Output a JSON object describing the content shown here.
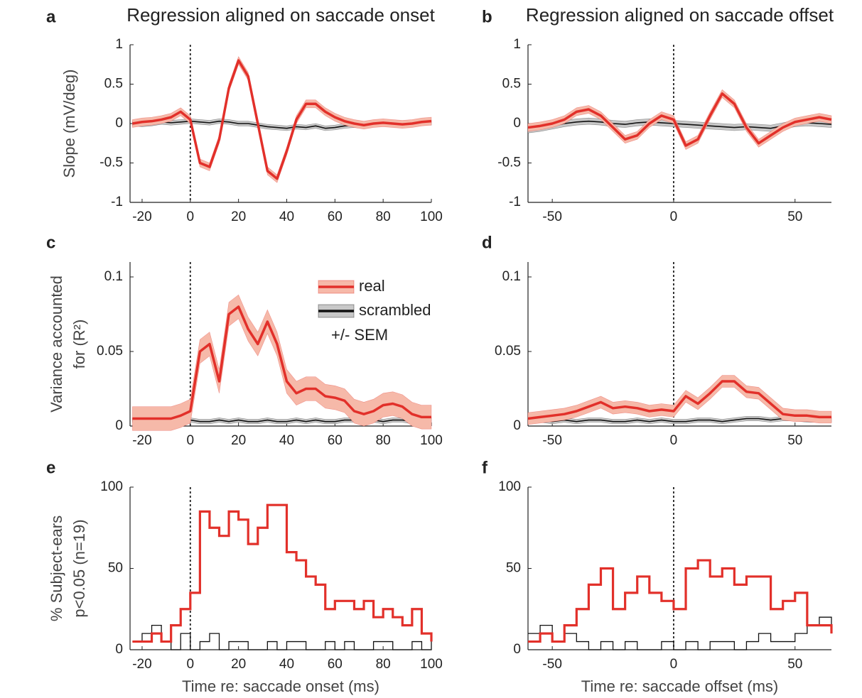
{
  "chart_data": [
    {
      "type": "line",
      "label": "a",
      "title": "Regression aligned on saccade onset",
      "ylabel": [
        "Slope (mV/deg)"
      ],
      "x": [
        -24,
        -20,
        -16,
        -12,
        -8,
        -4,
        0,
        4,
        8,
        12,
        16,
        20,
        24,
        28,
        32,
        36,
        40,
        44,
        48,
        52,
        56,
        60,
        64,
        68,
        72,
        76,
        80,
        84,
        88,
        92,
        96,
        100
      ],
      "xlim": [
        -25,
        100
      ],
      "xticks": [
        -20,
        0,
        20,
        40,
        60,
        80,
        100
      ],
      "ylim": [
        -1,
        1
      ],
      "yticks": [
        -1,
        -0.5,
        0,
        0.5,
        1
      ],
      "vline": 0,
      "series": [
        {
          "name": "scrambled",
          "color": "#111111",
          "band_color": "#c8c8c8",
          "sem": 0.03,
          "values": [
            0,
            -0.01,
            0,
            0.02,
            0.01,
            0.02,
            0.03,
            0.02,
            0.01,
            0.03,
            0.02,
            0,
            0,
            -0.02,
            -0.04,
            -0.05,
            -0.06,
            -0.04,
            -0.05,
            -0.03,
            -0.06,
            -0.05,
            -0.03,
            -0.02,
            -0.03,
            -0.01,
            0,
            0.01,
            0,
            0.01,
            0.02,
            0.01
          ]
        },
        {
          "name": "real",
          "color": "#e2302a",
          "band_color": "#f6b9a9",
          "sem": 0.05,
          "values": [
            0,
            0.02,
            0.03,
            0.05,
            0.08,
            0.15,
            0.05,
            -0.5,
            -0.55,
            -0.2,
            0.45,
            0.8,
            0.6,
            0,
            -0.6,
            -0.7,
            -0.35,
            0.05,
            0.25,
            0.25,
            0.15,
            0.08,
            0.03,
            0,
            -0.02,
            0,
            0.01,
            0,
            -0.01,
            0,
            0.02,
            0.03
          ]
        }
      ]
    },
    {
      "type": "line",
      "label": "b",
      "title": "Regression aligned on saccade offset",
      "x": [
        -60,
        -55,
        -50,
        -45,
        -40,
        -35,
        -30,
        -25,
        -20,
        -15,
        -10,
        -5,
        0,
        5,
        10,
        15,
        20,
        25,
        30,
        35,
        40,
        45,
        50,
        55,
        60,
        65
      ],
      "xlim": [
        -60,
        65
      ],
      "xticks": [
        -50,
        0,
        50
      ],
      "ylim": [
        -1,
        1
      ],
      "yticks": [
        -1,
        -0.5,
        0,
        0.5,
        1
      ],
      "vline": 0,
      "series": [
        {
          "name": "scrambled",
          "color": "#111111",
          "band_color": "#c8c8c8",
          "sem": 0.04,
          "values": [
            -0.08,
            -0.06,
            -0.03,
            0,
            0.02,
            0.03,
            0.02,
            0,
            -0.01,
            0.01,
            0.02,
            0.01,
            0,
            -0.01,
            -0.02,
            -0.03,
            -0.04,
            -0.05,
            -0.04,
            -0.05,
            -0.06,
            -0.03,
            0,
            0.01,
            0,
            -0.01
          ]
        },
        {
          "name": "real",
          "color": "#e2302a",
          "band_color": "#f6b9a9",
          "sem": 0.05,
          "values": [
            -0.05,
            -0.03,
            0,
            0.05,
            0.15,
            0.18,
            0.1,
            -0.05,
            -0.2,
            -0.15,
            0,
            0.1,
            0.05,
            -0.28,
            -0.2,
            0.1,
            0.38,
            0.25,
            -0.05,
            -0.25,
            -0.15,
            -0.05,
            0.02,
            0.05,
            0.08,
            0.05
          ]
        }
      ]
    },
    {
      "type": "line",
      "label": "c",
      "ylabel": [
        "Variance accounted",
        "for (R²)"
      ],
      "legend": true,
      "legend_note": "+/- SEM",
      "x": [
        -24,
        -20,
        -16,
        -12,
        -8,
        -4,
        0,
        4,
        8,
        12,
        16,
        20,
        24,
        28,
        32,
        36,
        40,
        44,
        48,
        52,
        56,
        60,
        64,
        68,
        72,
        76,
        80,
        84,
        88,
        92,
        96,
        100
      ],
      "xlim": [
        -25,
        100
      ],
      "xticks": [
        -20,
        0,
        20,
        40,
        60,
        80,
        100
      ],
      "ylim": [
        0,
        0.11
      ],
      "yticks": [
        0,
        0.05,
        0.1
      ],
      "vline": 0,
      "series": [
        {
          "name": "scrambled",
          "color": "#111111",
          "band_color": "#c8c8c8",
          "sem": 0.0015,
          "values": [
            0.004,
            0.003,
            0.004,
            0.003,
            0.004,
            0.003,
            0.004,
            0.003,
            0.003,
            0.004,
            0.003,
            0.004,
            0.003,
            0.003,
            0.004,
            0.003,
            0.003,
            0.004,
            0.003,
            0.004,
            0.003,
            0.003,
            0.004,
            0.004,
            0.003,
            0.004,
            0.003,
            0.004,
            0.004,
            0.003,
            0.004,
            0.004
          ]
        },
        {
          "name": "real",
          "color": "#e2302a",
          "band_color": "#f6b9a9",
          "sem": 0.008,
          "values": [
            0.005,
            0.005,
            0.005,
            0.005,
            0.005,
            0.007,
            0.01,
            0.05,
            0.055,
            0.03,
            0.075,
            0.08,
            0.065,
            0.055,
            0.07,
            0.055,
            0.03,
            0.022,
            0.025,
            0.025,
            0.02,
            0.019,
            0.017,
            0.01,
            0.008,
            0.01,
            0.014,
            0.015,
            0.013,
            0.008,
            0.006,
            0.006
          ]
        }
      ]
    },
    {
      "type": "line",
      "label": "d",
      "x": [
        -60,
        -55,
        -50,
        -45,
        -40,
        -35,
        -30,
        -25,
        -20,
        -15,
        -10,
        -5,
        0,
        5,
        10,
        15,
        20,
        25,
        30,
        35,
        40,
        45,
        50,
        55,
        60,
        65
      ],
      "xlim": [
        -60,
        65
      ],
      "xticks": [
        -50,
        0,
        50
      ],
      "ylim": [
        0,
        0.11
      ],
      "yticks": [
        0,
        0.05,
        0.1
      ],
      "vline": 0,
      "series": [
        {
          "name": "scrambled",
          "color": "#111111",
          "band_color": "#c8c8c8",
          "sem": 0.0015,
          "values": [
            0.004,
            0.004,
            0.003,
            0.004,
            0.003,
            0.004,
            0.004,
            0.003,
            0.003,
            0.004,
            0.003,
            0.004,
            0.003,
            0.003,
            0.004,
            0.004,
            0.003,
            0.004,
            0.005,
            0.005,
            0.004,
            0.005,
            0.005,
            0.004,
            0.004,
            0.004
          ]
        },
        {
          "name": "real",
          "color": "#e2302a",
          "band_color": "#f6b9a9",
          "sem": 0.004,
          "values": [
            0.005,
            0.006,
            0.007,
            0.008,
            0.01,
            0.013,
            0.016,
            0.012,
            0.013,
            0.012,
            0.01,
            0.011,
            0.01,
            0.02,
            0.015,
            0.022,
            0.03,
            0.03,
            0.023,
            0.022,
            0.015,
            0.008,
            0.007,
            0.007,
            0.006,
            0.006
          ]
        }
      ]
    },
    {
      "type": "step",
      "label": "e",
      "ylabel": [
        "% Subject-ears",
        "p<0.05 (n=19)"
      ],
      "xlabel": "Time re: saccade onset (ms)",
      "x": [
        -24,
        -20,
        -16,
        -12,
        -8,
        -4,
        0,
        4,
        8,
        12,
        16,
        20,
        24,
        28,
        32,
        36,
        40,
        44,
        48,
        52,
        56,
        60,
        64,
        68,
        72,
        76,
        80,
        84,
        88,
        92,
        96,
        100
      ],
      "xlim": [
        -25,
        100
      ],
      "xticks": [
        -20,
        0,
        20,
        40,
        60,
        80,
        100
      ],
      "ylim": [
        0,
        100
      ],
      "yticks": [
        0,
        50,
        100
      ],
      "vline": 0,
      "series": [
        {
          "name": "scrambled",
          "color": "#111111",
          "values": [
            5,
            10,
            15,
            5,
            0,
            10,
            0,
            5,
            10,
            0,
            5,
            5,
            0,
            0,
            5,
            0,
            5,
            5,
            0,
            0,
            5,
            0,
            5,
            0,
            0,
            5,
            5,
            0,
            0,
            5,
            0,
            5
          ]
        },
        {
          "name": "real",
          "color": "#e2302a",
          "values": [
            5,
            5,
            10,
            5,
            15,
            25,
            35,
            85,
            75,
            70,
            85,
            80,
            65,
            75,
            89,
            89,
            60,
            55,
            45,
            40,
            25,
            30,
            30,
            25,
            30,
            20,
            25,
            20,
            15,
            25,
            10,
            5
          ]
        }
      ]
    },
    {
      "type": "step",
      "label": "f",
      "xlabel": "Time re: saccade offset (ms)",
      "x": [
        -60,
        -55,
        -50,
        -45,
        -40,
        -35,
        -30,
        -25,
        -20,
        -15,
        -10,
        -5,
        0,
        5,
        10,
        15,
        20,
        25,
        30,
        35,
        40,
        45,
        50,
        55,
        60,
        65
      ],
      "xlim": [
        -60,
        65
      ],
      "xticks": [
        -50,
        0,
        50
      ],
      "ylim": [
        0,
        100
      ],
      "yticks": [
        0,
        50,
        100
      ],
      "vline": 0,
      "series": [
        {
          "name": "scrambled",
          "color": "#111111",
          "values": [
            10,
            15,
            5,
            10,
            5,
            0,
            5,
            0,
            5,
            0,
            0,
            5,
            0,
            5,
            0,
            5,
            5,
            0,
            5,
            10,
            5,
            5,
            10,
            15,
            20,
            10
          ]
        },
        {
          "name": "real",
          "color": "#e2302a",
          "values": [
            5,
            10,
            5,
            15,
            25,
            40,
            50,
            25,
            35,
            45,
            35,
            30,
            25,
            50,
            55,
            45,
            50,
            40,
            45,
            45,
            25,
            30,
            35,
            15,
            15,
            10
          ]
        }
      ]
    }
  ]
}
